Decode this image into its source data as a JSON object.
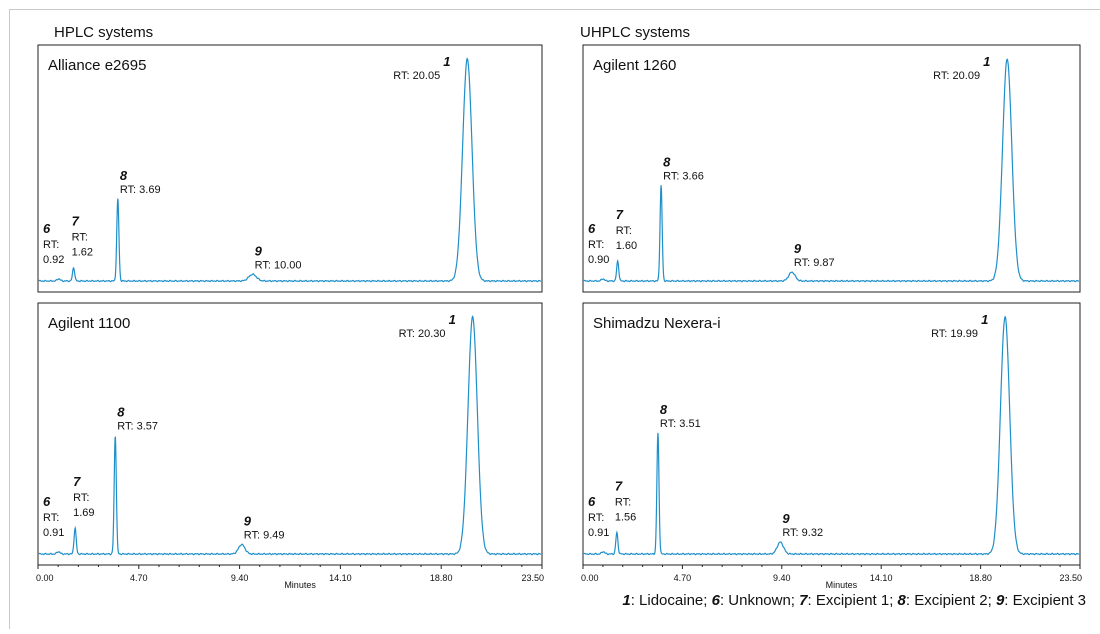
{
  "groups": {
    "left_title": "HPLC systems",
    "right_title": "UHPLC systems"
  },
  "legend": {
    "items": [
      {
        "num": "1",
        "text": ": Lidocaine; "
      },
      {
        "num": "6",
        "text": ": Unknown; "
      },
      {
        "num": "7",
        "text": ": Excipient 1; "
      },
      {
        "num": "8",
        "text": ": Excipient 2; "
      },
      {
        "num": "9",
        "text": ": Excipient 3"
      }
    ]
  },
  "colors": {
    "trace": "#1f8fc9",
    "axis": "#222222",
    "text": "#111111"
  },
  "chart_data": [
    {
      "type": "line",
      "title": "Alliance e2695",
      "xlim": [
        0,
        23.5
      ],
      "peaks": [
        {
          "id": "6",
          "rt": 0.92,
          "rt_text": "0.92",
          "height": 0.01,
          "width": 0.07
        },
        {
          "id": "7",
          "rt": 1.62,
          "rt_text": "1.62",
          "height": 0.06,
          "width": 0.05
        },
        {
          "id": "8",
          "rt": 3.69,
          "rt_text": "3.69",
          "height": 0.37,
          "width": 0.05
        },
        {
          "id": "9",
          "rt": 10.0,
          "rt_text": "10.00",
          "height": 0.03,
          "width": 0.18
        },
        {
          "id": "1",
          "rt": 20.05,
          "rt_text": "20.05",
          "height": 1.0,
          "width": 0.22
        }
      ]
    },
    {
      "type": "line",
      "title": "Agilent 1260",
      "xlim": [
        0,
        23.5
      ],
      "peaks": [
        {
          "id": "6",
          "rt": 0.9,
          "rt_text": "0.90",
          "height": 0.01,
          "width": 0.07
        },
        {
          "id": "7",
          "rt": 1.6,
          "rt_text": "1.60",
          "height": 0.09,
          "width": 0.05
        },
        {
          "id": "8",
          "rt": 3.66,
          "rt_text": "3.66",
          "height": 0.43,
          "width": 0.05
        },
        {
          "id": "9",
          "rt": 9.87,
          "rt_text": "9.87",
          "height": 0.04,
          "width": 0.15
        },
        {
          "id": "1",
          "rt": 20.09,
          "rt_text": "20.09",
          "height": 1.0,
          "width": 0.22
        }
      ]
    },
    {
      "type": "line",
      "title": "Agilent 1100",
      "xlim": [
        0,
        23.5
      ],
      "xlabel": "Minutes",
      "xticks": [
        "0.00",
        "4.70",
        "9.40",
        "14.10",
        "18.80",
        "23.50"
      ],
      "peaks": [
        {
          "id": "6",
          "rt": 0.91,
          "rt_text": "0.91",
          "height": 0.01,
          "width": 0.07
        },
        {
          "id": "7",
          "rt": 1.69,
          "rt_text": "1.69",
          "height": 0.11,
          "width": 0.05
        },
        {
          "id": "8",
          "rt": 3.57,
          "rt_text": "3.57",
          "height": 0.5,
          "width": 0.05
        },
        {
          "id": "9",
          "rt": 9.49,
          "rt_text": "9.49",
          "height": 0.04,
          "width": 0.15
        },
        {
          "id": "1",
          "rt": 20.3,
          "rt_text": "20.30",
          "height": 1.0,
          "width": 0.22
        }
      ]
    },
    {
      "type": "line",
      "title": "Shimadzu Nexera-i",
      "xlim": [
        0,
        23.5
      ],
      "xlabel": "Minutes",
      "xticks": [
        "0.00",
        "4.70",
        "9.40",
        "14.10",
        "18.80",
        "23.50"
      ],
      "peaks": [
        {
          "id": "6",
          "rt": 0.91,
          "rt_text": "0.91",
          "height": 0.01,
          "width": 0.07
        },
        {
          "id": "7",
          "rt": 1.56,
          "rt_text": "1.56",
          "height": 0.09,
          "width": 0.05
        },
        {
          "id": "8",
          "rt": 3.51,
          "rt_text": "3.51",
          "height": 0.51,
          "width": 0.05
        },
        {
          "id": "9",
          "rt": 9.32,
          "rt_text": "9.32",
          "height": 0.05,
          "width": 0.15
        },
        {
          "id": "1",
          "rt": 19.99,
          "rt_text": "19.99",
          "height": 1.0,
          "width": 0.22
        }
      ]
    }
  ]
}
